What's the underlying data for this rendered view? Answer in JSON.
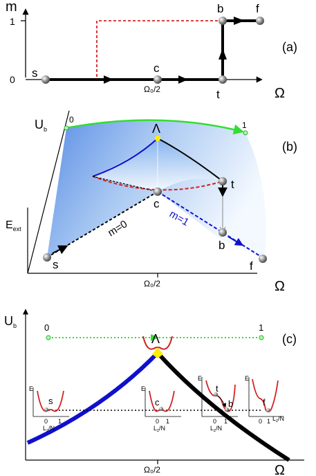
{
  "panel_a": {
    "tag": "(a)",
    "y_label": "m",
    "y_ticks": [
      "1",
      "0"
    ],
    "x_label": "Ω",
    "x_tick": "Ω₀/2",
    "points": {
      "s": "s",
      "c": "c",
      "t": "t",
      "b": "b",
      "f": "f"
    }
  },
  "panel_b": {
    "tag": "(b)",
    "axis_u": "U",
    "axis_u_sub": "b",
    "axis_e": "E",
    "axis_e_sub": "ext",
    "x_label": "Ω",
    "x_tick": "Ω₀/2",
    "corner_0": "0",
    "corner_1": "1",
    "lambda": "Λ",
    "points": {
      "s": "s",
      "c": "c",
      "t": "t",
      "b": "b",
      "f": "f"
    },
    "branch_m0": "m=0",
    "branch_m1": "m=1"
  },
  "panel_c": {
    "tag": "(c)",
    "axis_u": "U",
    "axis_u_sub": "b",
    "x_label": "Ω",
    "x_tick": "Ω₀/2",
    "top_0": "0",
    "top_1": "1",
    "lambda": "Λ",
    "inset_e": "E",
    "inset_x": "L",
    "inset_x_sub": "z",
    "inset_x_tail": "/N",
    "inset_ticks": [
      "0",
      "1"
    ],
    "inset_points": [
      "s",
      "c",
      "t",
      "b",
      "f"
    ]
  },
  "colors": {
    "trajectory": "#000000",
    "dashed_red": "#d42020",
    "green": "#33dd33",
    "blue": "#1010cc",
    "yellow": "#ffee00",
    "surface": "#6f9fe8"
  }
}
